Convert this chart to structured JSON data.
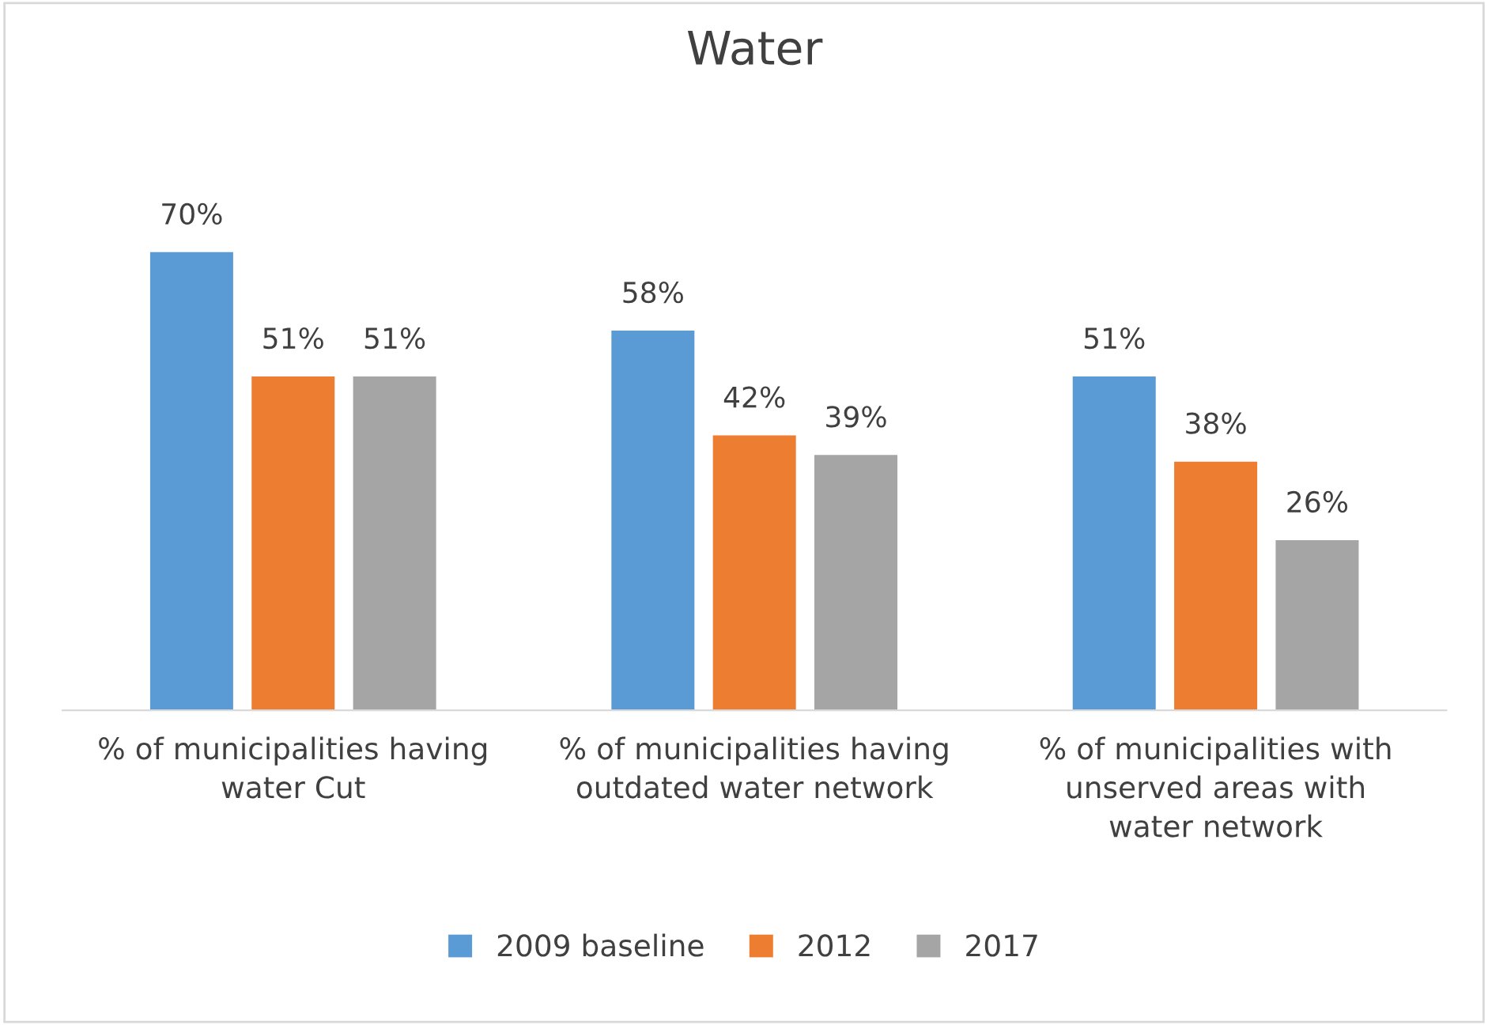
{
  "chart_data": {
    "type": "bar",
    "title": "Water",
    "categories": [
      "% of municipalities having\nwater Cut",
      "% of municipalities having\noutdated water network",
      "% of municipalities with\nunserved areas with\nwater network"
    ],
    "series": [
      {
        "name": "2009 baseline",
        "color": "#5b9bd5",
        "values": [
          70,
          58,
          51
        ],
        "value_labels": [
          "70%",
          "58%",
          "51%"
        ]
      },
      {
        "name": "2012",
        "color": "#ed7d31",
        "values": [
          51,
          42,
          38
        ],
        "value_labels": [
          "51%",
          "42%",
          "38%"
        ]
      },
      {
        "name": "2017",
        "color": "#a5a5a5",
        "values": [
          51,
          39,
          26
        ],
        "value_labels": [
          "51%",
          "39%",
          "26%"
        ]
      }
    ],
    "grid": false,
    "legend": "bottom"
  }
}
